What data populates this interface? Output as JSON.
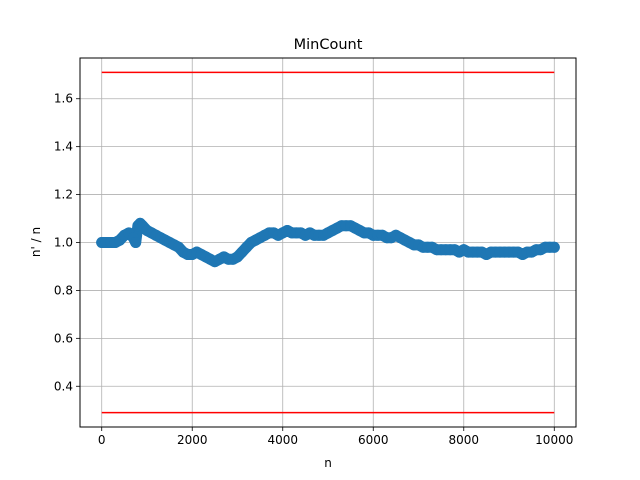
{
  "chart_data": {
    "type": "scatter",
    "title": "MinCount",
    "xlabel": "n",
    "ylabel": "n' / n",
    "xlim": [
      -480,
      10480
    ],
    "ylim": [
      0.23,
      1.77
    ],
    "xticks": [
      0,
      2000,
      4000,
      6000,
      8000,
      10000
    ],
    "yticks": [
      0.4,
      0.6,
      0.8,
      1.0,
      1.2,
      1.4,
      1.6
    ],
    "ytick_labels": [
      "0.4",
      "0.6",
      "0.8",
      "1.0",
      "1.2",
      "1.4",
      "1.6"
    ],
    "grid": true,
    "colors": {
      "series": "#1f77b4",
      "bounds": "#ff0000",
      "grid": "#b0b0b0"
    },
    "bounds": [
      {
        "x": [
          0,
          10000
        ],
        "y": [
          1.71,
          1.71
        ]
      },
      {
        "x": [
          0,
          10000
        ],
        "y": [
          0.29,
          0.29
        ]
      }
    ],
    "series": [
      {
        "x": [
          0,
          100,
          200,
          300,
          400,
          500,
          600,
          700,
          750,
          800,
          850,
          900,
          1000,
          1100,
          1200,
          1300,
          1400,
          1500,
          1600,
          1700,
          1800,
          1900,
          2000,
          2100,
          2200,
          2300,
          2400,
          2500,
          2600,
          2700,
          2800,
          2900,
          3000,
          3100,
          3200,
          3300,
          3400,
          3500,
          3600,
          3700,
          3800,
          3900,
          4000,
          4100,
          4200,
          4300,
          4400,
          4500,
          4600,
          4700,
          4800,
          4900,
          5000,
          5100,
          5200,
          5300,
          5400,
          5500,
          5600,
          5700,
          5800,
          5900,
          6000,
          6100,
          6200,
          6300,
          6400,
          6500,
          6600,
          6700,
          6800,
          6900,
          7000,
          7100,
          7200,
          7300,
          7400,
          7500,
          7600,
          7700,
          7800,
          7900,
          8000,
          8100,
          8200,
          8300,
          8400,
          8500,
          8600,
          8700,
          8800,
          8900,
          9000,
          9100,
          9200,
          9300,
          9400,
          9500,
          9600,
          9700,
          9800,
          9900,
          10000
        ],
        "y": [
          1.0,
          1.0,
          1.0,
          1.0,
          1.01,
          1.03,
          1.04,
          1.02,
          1.0,
          1.07,
          1.08,
          1.07,
          1.05,
          1.04,
          1.03,
          1.02,
          1.01,
          1.0,
          0.99,
          0.98,
          0.96,
          0.95,
          0.95,
          0.96,
          0.95,
          0.94,
          0.93,
          0.92,
          0.93,
          0.94,
          0.93,
          0.93,
          0.94,
          0.96,
          0.98,
          1.0,
          1.01,
          1.02,
          1.03,
          1.04,
          1.04,
          1.03,
          1.04,
          1.05,
          1.04,
          1.04,
          1.04,
          1.03,
          1.04,
          1.03,
          1.03,
          1.03,
          1.04,
          1.05,
          1.06,
          1.07,
          1.07,
          1.07,
          1.06,
          1.05,
          1.04,
          1.04,
          1.03,
          1.03,
          1.03,
          1.02,
          1.02,
          1.03,
          1.02,
          1.01,
          1.0,
          0.99,
          0.99,
          0.98,
          0.98,
          0.98,
          0.97,
          0.97,
          0.97,
          0.97,
          0.97,
          0.96,
          0.97,
          0.96,
          0.96,
          0.96,
          0.96,
          0.95,
          0.96,
          0.96,
          0.96,
          0.96,
          0.96,
          0.96,
          0.96,
          0.95,
          0.96,
          0.96,
          0.97,
          0.97,
          0.98,
          0.98,
          0.98
        ]
      }
    ]
  }
}
